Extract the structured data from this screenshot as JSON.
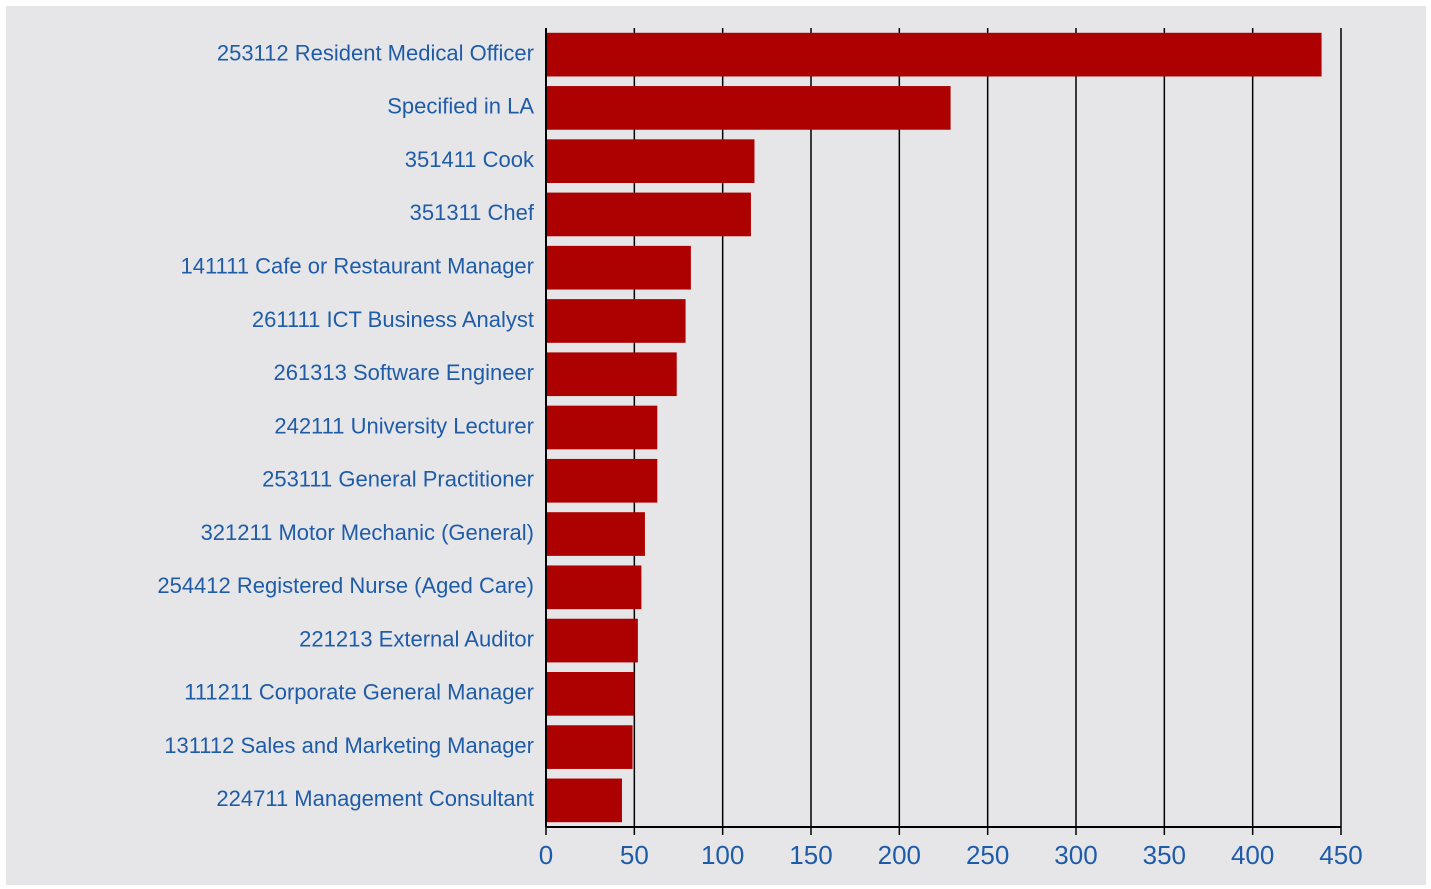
{
  "chart_data": {
    "type": "hbar",
    "categories": [
      "253112 Resident Medical Officer",
      "Specified in LA",
      "351411 Cook",
      "351311 Chef",
      "141111 Cafe or Restaurant Manager",
      "261111 ICT Business Analyst",
      "261313 Software Engineer",
      "242111 University Lecturer",
      "253111 General Practitioner",
      "321211 Motor Mechanic (General)",
      "254412 Registered Nurse (Aged Care)",
      "221213 External Auditor",
      "111211 Corporate General Manager",
      "131112 Sales and Marketing Manager",
      "224711 Management Consultant"
    ],
    "values": [
      439,
      229,
      118,
      116,
      82,
      79,
      74,
      63,
      63,
      56,
      54,
      52,
      50,
      49,
      43
    ],
    "color": "#ad0000",
    "xlim": [
      0,
      450
    ],
    "xticks": [
      0,
      50,
      100,
      150,
      200,
      250,
      300,
      350,
      400,
      450
    ],
    "grid": true
  }
}
